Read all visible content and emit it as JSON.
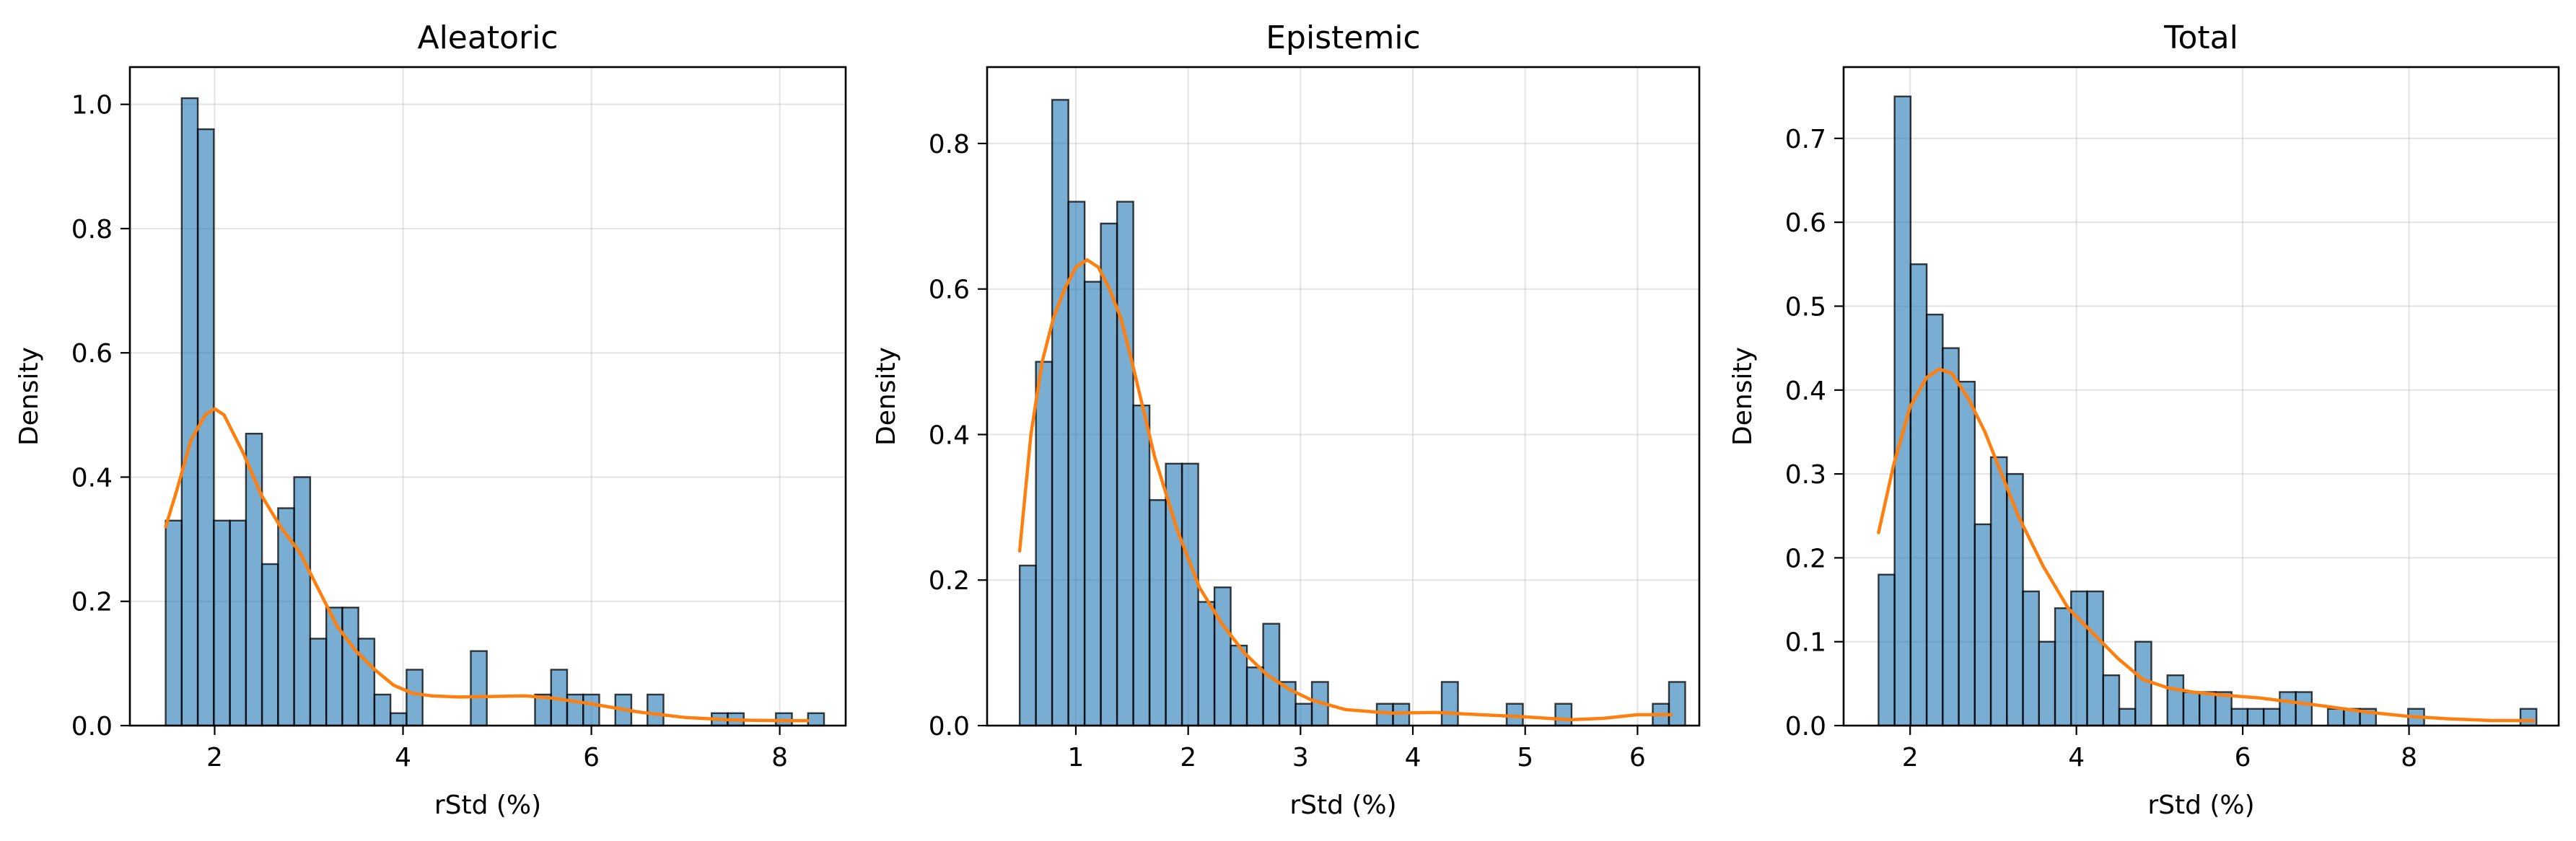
{
  "chart_data": [
    {
      "type": "bar",
      "title": "Aleatoric",
      "xlabel": "rStd (%)",
      "ylabel": "Density",
      "xlim": [
        1.1,
        8.7
      ],
      "ylim": [
        0,
        1.06
      ],
      "xticks": [
        2,
        4,
        6,
        8
      ],
      "yticks": [
        0.0,
        0.2,
        0.4,
        0.6,
        0.8,
        1.0
      ],
      "grid": true,
      "bin_start": 1.48,
      "bin_width": 0.1705,
      "values": [
        0.33,
        1.01,
        0.96,
        0.33,
        0.33,
        0.47,
        0.26,
        0.35,
        0.4,
        0.14,
        0.19,
        0.19,
        0.14,
        0.05,
        0.02,
        0.09,
        0.0,
        0.0,
        0.0,
        0.12,
        0.0,
        0.0,
        0.0,
        0.05,
        0.09,
        0.05,
        0.05,
        0.0,
        0.05,
        0.0,
        0.05,
        0.0,
        0.0,
        0.0,
        0.02,
        0.02,
        0.0,
        0.0,
        0.02,
        0.0,
        0.02
      ],
      "kde": {
        "name": "KDE",
        "x": [
          1.48,
          1.6,
          1.75,
          1.9,
          2.0,
          2.1,
          2.3,
          2.5,
          2.7,
          2.9,
          3.1,
          3.3,
          3.5,
          3.7,
          3.9,
          4.1,
          4.3,
          4.6,
          5.0,
          5.3,
          5.6,
          6.0,
          6.5,
          7.0,
          7.5,
          8.0,
          8.3
        ],
        "y": [
          0.32,
          0.38,
          0.46,
          0.5,
          0.51,
          0.5,
          0.44,
          0.37,
          0.32,
          0.28,
          0.22,
          0.16,
          0.12,
          0.09,
          0.065,
          0.052,
          0.048,
          0.046,
          0.047,
          0.048,
          0.044,
          0.035,
          0.022,
          0.013,
          0.009,
          0.008,
          0.008
        ]
      }
    },
    {
      "type": "bar",
      "title": "Epistemic",
      "xlabel": "rStd (%)",
      "ylabel": "Density",
      "xlim": [
        0.21,
        6.55
      ],
      "ylim": [
        0,
        0.905
      ],
      "xticks": [
        1,
        2,
        3,
        4,
        5,
        6
      ],
      "yticks": [
        0.0,
        0.2,
        0.4,
        0.6,
        0.8
      ],
      "grid": true,
      "bin_start": 0.5,
      "bin_width": 0.1445,
      "values": [
        0.22,
        0.5,
        0.86,
        0.72,
        0.61,
        0.69,
        0.72,
        0.44,
        0.31,
        0.36,
        0.36,
        0.17,
        0.19,
        0.11,
        0.08,
        0.14,
        0.06,
        0.03,
        0.06,
        0.0,
        0.0,
        0.0,
        0.03,
        0.03,
        0.0,
        0.0,
        0.06,
        0.0,
        0.0,
        0.0,
        0.03,
        0.0,
        0.0,
        0.03,
        0.0,
        0.0,
        0.0,
        0.0,
        0.0,
        0.03,
        0.06
      ],
      "kde": {
        "name": "KDE",
        "x": [
          0.5,
          0.6,
          0.7,
          0.8,
          0.9,
          1.0,
          1.1,
          1.2,
          1.3,
          1.4,
          1.5,
          1.7,
          1.9,
          2.1,
          2.3,
          2.5,
          2.7,
          2.9,
          3.1,
          3.4,
          3.8,
          4.2,
          4.6,
          5.0,
          5.4,
          5.7,
          6.0,
          6.3
        ],
        "y": [
          0.24,
          0.4,
          0.5,
          0.56,
          0.6,
          0.63,
          0.64,
          0.63,
          0.6,
          0.56,
          0.5,
          0.37,
          0.27,
          0.19,
          0.14,
          0.1,
          0.07,
          0.05,
          0.035,
          0.022,
          0.017,
          0.018,
          0.015,
          0.012,
          0.008,
          0.01,
          0.015,
          0.015
        ]
      }
    },
    {
      "type": "bar",
      "title": "Total",
      "xlabel": "rStd (%)",
      "ylabel": "Density",
      "xlim": [
        1.2,
        9.8
      ],
      "ylim": [
        0,
        0.785
      ],
      "xticks": [
        2,
        4,
        6,
        8
      ],
      "yticks": [
        0.0,
        0.1,
        0.2,
        0.3,
        0.4,
        0.5,
        0.6,
        0.7
      ],
      "grid": true,
      "bin_start": 1.62,
      "bin_width": 0.193,
      "values": [
        0.18,
        0.75,
        0.55,
        0.49,
        0.45,
        0.41,
        0.24,
        0.32,
        0.3,
        0.16,
        0.1,
        0.14,
        0.16,
        0.16,
        0.06,
        0.02,
        0.1,
        0.0,
        0.06,
        0.04,
        0.04,
        0.04,
        0.02,
        0.02,
        0.02,
        0.04,
        0.04,
        0.0,
        0.02,
        0.02,
        0.02,
        0.0,
        0.0,
        0.02,
        0.0,
        0.0,
        0.0,
        0.0,
        0.0,
        0.0,
        0.02
      ],
      "kde": {
        "name": "KDE",
        "x": [
          1.62,
          1.8,
          2.0,
          2.2,
          2.35,
          2.5,
          2.7,
          2.9,
          3.1,
          3.3,
          3.6,
          3.9,
          4.2,
          4.5,
          4.8,
          5.1,
          5.4,
          5.8,
          6.2,
          6.6,
          7.0,
          7.5,
          8.0,
          8.5,
          9.0,
          9.5
        ],
        "y": [
          0.23,
          0.31,
          0.38,
          0.415,
          0.425,
          0.42,
          0.39,
          0.35,
          0.3,
          0.25,
          0.19,
          0.14,
          0.11,
          0.08,
          0.055,
          0.045,
          0.04,
          0.036,
          0.033,
          0.028,
          0.023,
          0.016,
          0.011,
          0.008,
          0.006,
          0.006
        ]
      }
    }
  ]
}
